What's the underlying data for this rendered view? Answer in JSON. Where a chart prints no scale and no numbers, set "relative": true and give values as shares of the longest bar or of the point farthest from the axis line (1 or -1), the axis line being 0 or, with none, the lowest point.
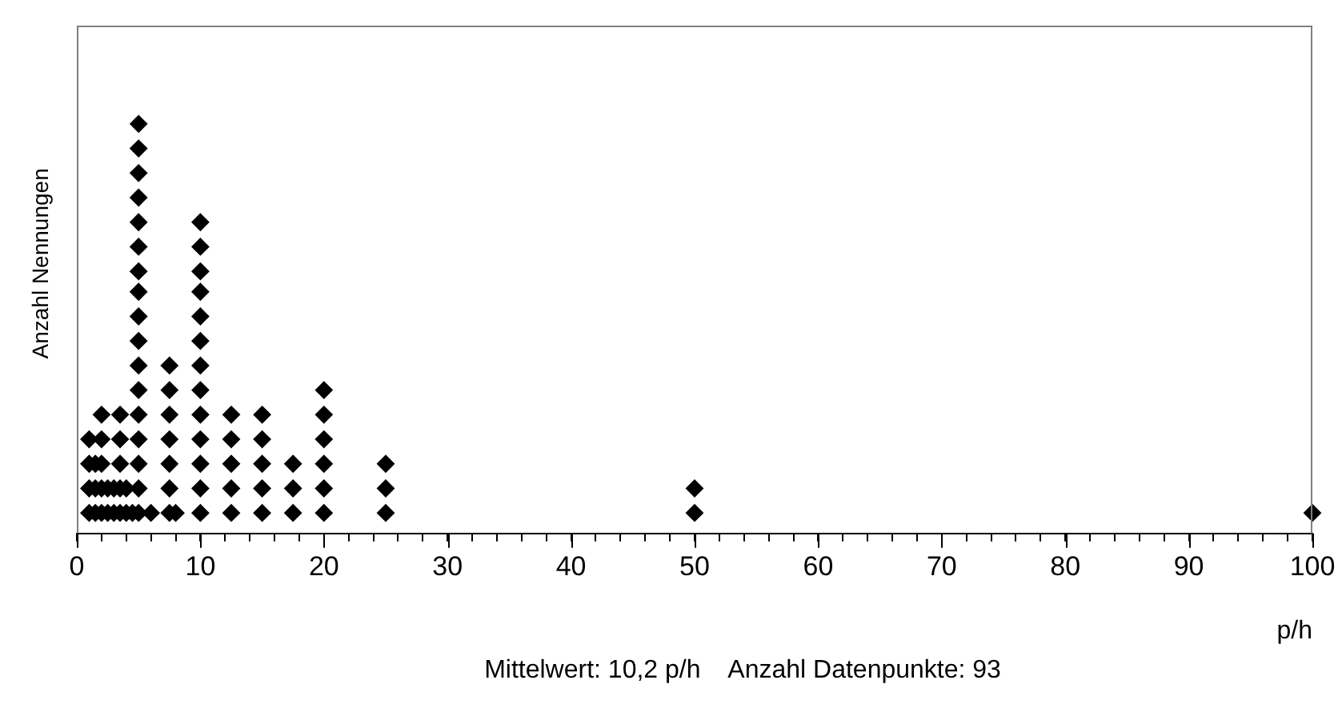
{
  "chart_data": {
    "type": "scatter",
    "relative": true,
    "xlabel": "p/h",
    "ylabel": "Anzahl Nennungen",
    "annotations": [
      "Mittelwert: 10,2 p/h    Anzahl Datenpunkte: 93"
    ],
    "xlim": [
      0,
      100
    ],
    "xticks": [
      0,
      {
        "value": 2,
        "label": null
      },
      {
        "value": 4,
        "label": null
      },
      {
        "value": 6,
        "label": null
      },
      {
        "value": 8,
        "label": null
      },
      10,
      {
        "value": 12,
        "label": null
      },
      {
        "value": 14,
        "label": null
      },
      {
        "value": 16,
        "label": null
      },
      {
        "value": 18,
        "label": null
      },
      20,
      {
        "value": 22,
        "label": null
      },
      {
        "value": 24,
        "label": null
      },
      {
        "value": 26,
        "label": null
      },
      {
        "value": 28,
        "label": null
      },
      30,
      {
        "value": 32,
        "label": null
      },
      {
        "value": 34,
        "label": null
      },
      {
        "value": 36,
        "label": null
      },
      {
        "value": 38,
        "label": null
      },
      40,
      {
        "value": 42,
        "label": null
      },
      {
        "value": 44,
        "label": null
      },
      {
        "value": 46,
        "label": null
      },
      {
        "value": 48,
        "label": null
      },
      50,
      {
        "value": 52,
        "label": null
      },
      {
        "value": 54,
        "label": null
      },
      {
        "value": 56,
        "label": null
      },
      {
        "value": 58,
        "label": null
      },
      60,
      {
        "value": 62,
        "label": null
      },
      {
        "value": 64,
        "label": null
      },
      {
        "value": 66,
        "label": null
      },
      {
        "value": 68,
        "label": null
      },
      70,
      {
        "value": 72,
        "label": null
      },
      {
        "value": 74,
        "label": null
      },
      {
        "value": 76,
        "label": null
      },
      {
        "value": 78,
        "label": null
      },
      80,
      {
        "value": 82,
        "label": null
      },
      {
        "value": 84,
        "label": null
      },
      {
        "value": 86,
        "label": null
      },
      {
        "value": 88,
        "label": null
      },
      90,
      {
        "value": 92,
        "label": null
      },
      {
        "value": 94,
        "label": null
      },
      {
        "value": 96,
        "label": null
      },
      {
        "value": 98,
        "label": null
      },
      100
    ],
    "grid": false,
    "legend": false,
    "marker": "diamond",
    "series": [
      {
        "color": "#000000",
        "x": [
          1,
          1.5,
          2,
          2.5,
          3,
          3.5,
          4,
          4.5,
          1,
          1.5,
          2,
          2.5,
          3,
          3.5,
          4,
          1,
          1.5,
          2,
          3.5,
          1,
          2,
          3.5,
          2,
          3.5,
          5,
          5,
          5,
          5,
          5,
          5,
          5,
          5,
          5,
          5,
          5,
          5,
          5,
          5,
          5,
          5,
          5,
          6,
          8,
          7.5,
          7.5,
          7.5,
          7.5,
          7.5,
          7.5,
          7.5,
          10,
          10,
          10,
          10,
          10,
          10,
          10,
          10,
          10,
          10,
          10,
          10,
          10,
          12.5,
          12.5,
          12.5,
          12.5,
          12.5,
          15,
          15,
          15,
          15,
          15,
          17.5,
          17.5,
          17.5,
          20,
          20,
          20,
          20,
          20,
          20,
          25,
          25,
          25,
          50,
          50,
          100
        ],
        "values": [
          0.05,
          0.05,
          0.05,
          0.05,
          0.05,
          0.05,
          0.05,
          0.05,
          0.11,
          0.11,
          0.11,
          0.11,
          0.11,
          0.11,
          0.11,
          0.17,
          0.17,
          0.17,
          0.17,
          0.23,
          0.23,
          0.23,
          0.29,
          0.29,
          0.05,
          0.11,
          0.17,
          0.23,
          0.29,
          0.35,
          0.41,
          0.47,
          0.53,
          0.59,
          0.64,
          0.7,
          0.76,
          0.82,
          0.88,
          0.94,
          1,
          0.05,
          0.05,
          0.05,
          0.11,
          0.17,
          0.23,
          0.29,
          0.35,
          0.41,
          0.05,
          0.11,
          0.17,
          0.23,
          0.29,
          0.35,
          0.41,
          0.47,
          0.53,
          0.59,
          0.64,
          0.7,
          0.76,
          0.05,
          0.11,
          0.17,
          0.23,
          0.29,
          0.05,
          0.11,
          0.17,
          0.23,
          0.29,
          0.05,
          0.11,
          0.17,
          0.05,
          0.11,
          0.17,
          0.23,
          0.29,
          0.35,
          0.05,
          0.11,
          0.17,
          0.05,
          0.11,
          0.05
        ]
      }
    ]
  }
}
